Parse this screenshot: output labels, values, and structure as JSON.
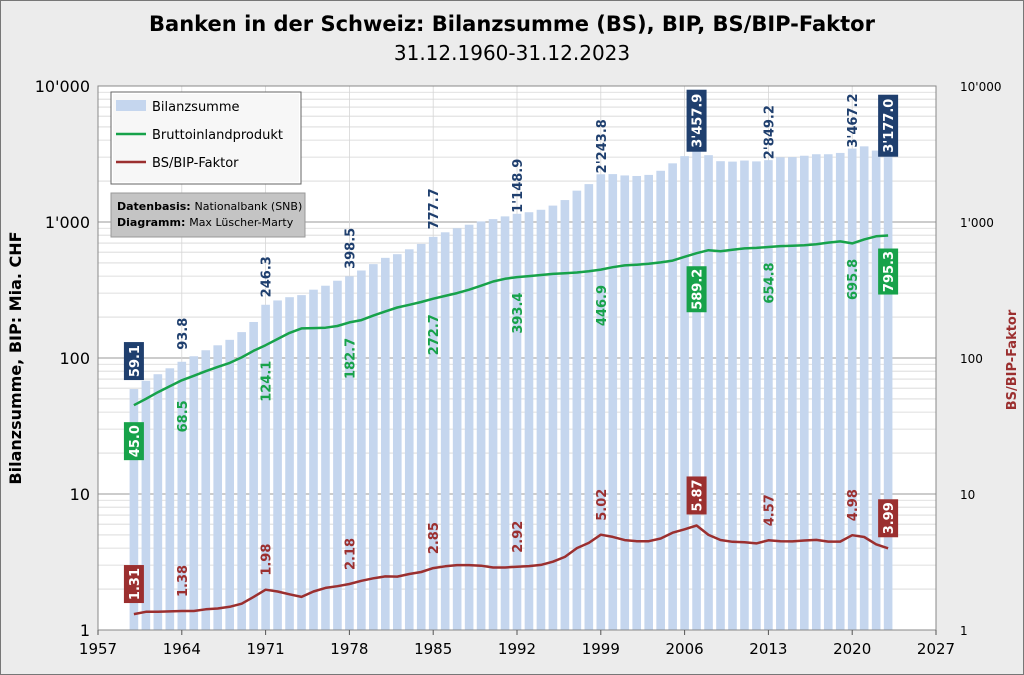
{
  "chart_data": {
    "type": "bar+line",
    "title": "Banken in der Schweiz: Bilanzsumme (BS), BIP, BS/BIP-Faktor",
    "subtitle": "31.12.1960-31.12.2023",
    "ylabel_left": "Bilanzsumme, BIP: Mia. CHF",
    "ylabel_right": "BS/BIP-Faktor",
    "yscale": "log",
    "ylim": [
      1,
      10000
    ],
    "y_ticks": [
      "1",
      "10",
      "100",
      "1'000",
      "10'000"
    ],
    "xlim": [
      1957,
      2027
    ],
    "x_ticks": [
      1957,
      1964,
      1971,
      1978,
      1985,
      1992,
      1999,
      2006,
      2013,
      2020,
      2027
    ],
    "grid": true,
    "legend_position": "top-left",
    "legend": [
      "Bilanzsumme",
      "Bruttoinlandprodukt",
      "BS/BIP-Faktor"
    ],
    "note_lines": [
      {
        "label": "Datenbasis:",
        "text": "Nationalbank (SNB)"
      },
      {
        "label": "Diagramm:",
        "text": "Max Lüscher-Marty"
      }
    ],
    "colors": {
      "bilanzsumme": "#c5d6ee",
      "bip": "#17a24a",
      "faktor": "#9b2f2f",
      "label_bs": "#1f3f6e"
    },
    "x": [
      1960,
      1961,
      1962,
      1963,
      1964,
      1965,
      1966,
      1967,
      1968,
      1969,
      1970,
      1971,
      1972,
      1973,
      1974,
      1975,
      1976,
      1977,
      1978,
      1979,
      1980,
      1981,
      1982,
      1983,
      1984,
      1985,
      1986,
      1987,
      1988,
      1989,
      1990,
      1991,
      1992,
      1993,
      1994,
      1995,
      1996,
      1997,
      1998,
      1999,
      2000,
      2001,
      2002,
      2003,
      2004,
      2005,
      2006,
      2007,
      2008,
      2009,
      2010,
      2011,
      2012,
      2013,
      2014,
      2015,
      2016,
      2017,
      2018,
      2019,
      2020,
      2021,
      2022,
      2023
    ],
    "series": [
      {
        "name": "Bilanzsumme",
        "type": "bar",
        "values": [
          59.1,
          68,
          76,
          84,
          93.8,
          103,
          114,
          124,
          136,
          155,
          184,
          246.3,
          265,
          280,
          290,
          318,
          340,
          370,
          398.5,
          440,
          490,
          545,
          580,
          630,
          690,
          777.7,
          840,
          900,
          955,
          1010,
          1050,
          1100,
          1148.9,
          1180,
          1230,
          1320,
          1450,
          1700,
          1900,
          2243.8,
          2250,
          2200,
          2180,
          2220,
          2380,
          2700,
          3050,
          3457.9,
          3100,
          2800,
          2780,
          2830,
          2790,
          2849.2,
          2990,
          3000,
          3070,
          3150,
          3150,
          3220,
          3467.2,
          3600,
          3350,
          3177.0
        ]
      },
      {
        "name": "Bruttoinlandprodukt",
        "type": "line",
        "values": [
          45.0,
          50,
          56,
          62,
          68.5,
          74,
          80,
          86,
          92,
          101,
          113,
          124.1,
          138,
          153,
          165,
          166,
          167,
          172,
          182.7,
          190,
          205,
          220,
          235,
          246,
          258,
          272.7,
          286,
          300,
          318,
          340,
          365,
          382,
          393.4,
          400,
          408,
          415,
          420,
          425,
          435,
          446.9,
          465,
          480,
          485,
          493,
          505,
          520,
          555,
          589.2,
          620,
          610,
          625,
          640,
          645,
          654.8,
          665,
          670,
          675,
          685,
          705,
          720,
          695.8,
          745,
          785,
          795.3
        ]
      },
      {
        "name": "BS/BIP-Faktor",
        "type": "line",
        "values": [
          1.31,
          1.36,
          1.36,
          1.37,
          1.38,
          1.38,
          1.42,
          1.44,
          1.48,
          1.56,
          1.75,
          1.98,
          1.92,
          1.83,
          1.75,
          1.92,
          2.04,
          2.1,
          2.18,
          2.3,
          2.4,
          2.48,
          2.47,
          2.58,
          2.67,
          2.85,
          2.94,
          3.0,
          3.0,
          2.97,
          2.88,
          2.88,
          2.92,
          2.95,
          3.01,
          3.18,
          3.45,
          4.0,
          4.37,
          5.02,
          4.84,
          4.58,
          4.5,
          4.5,
          4.71,
          5.19,
          5.5,
          5.87,
          5.0,
          4.59,
          4.45,
          4.42,
          4.33,
          4.57,
          4.5,
          4.48,
          4.55,
          4.6,
          4.47,
          4.47,
          4.98,
          4.83,
          4.27,
          3.99
        ]
      }
    ],
    "labels_bs": [
      {
        "x": 1960,
        "text": "59.1",
        "boxed": true
      },
      {
        "x": 1964,
        "text": "93.8",
        "boxed": false
      },
      {
        "x": 1971,
        "text": "246.3",
        "boxed": false
      },
      {
        "x": 1978,
        "text": "398.5",
        "boxed": false
      },
      {
        "x": 1985,
        "text": "777.7",
        "boxed": false
      },
      {
        "x": 1992,
        "text": "1'148.9",
        "boxed": false
      },
      {
        "x": 1999,
        "text": "2'243.8",
        "boxed": false
      },
      {
        "x": 2007,
        "text": "3'457.9",
        "boxed": true
      },
      {
        "x": 2013,
        "text": "2'849.2",
        "boxed": false
      },
      {
        "x": 2020,
        "text": "3'467.2",
        "boxed": false
      },
      {
        "x": 2023,
        "text": "3'177.0",
        "boxed": true
      }
    ],
    "labels_bip": [
      {
        "x": 1960,
        "text": "45.0",
        "boxed": true
      },
      {
        "x": 1964,
        "text": "68.5",
        "boxed": false
      },
      {
        "x": 1971,
        "text": "124.1",
        "boxed": false
      },
      {
        "x": 1978,
        "text": "182.7",
        "boxed": false
      },
      {
        "x": 1985,
        "text": "272.7",
        "boxed": false
      },
      {
        "x": 1992,
        "text": "393.4",
        "boxed": false
      },
      {
        "x": 1999,
        "text": "446.9",
        "boxed": false
      },
      {
        "x": 2007,
        "text": "589.2",
        "boxed": true
      },
      {
        "x": 2013,
        "text": "654.8",
        "boxed": false
      },
      {
        "x": 2020,
        "text": "695.8",
        "boxed": false
      },
      {
        "x": 2023,
        "text": "795.3",
        "boxed": true
      }
    ],
    "labels_faktor": [
      {
        "x": 1960,
        "text": "1.31",
        "boxed": true
      },
      {
        "x": 1964,
        "text": "1.38",
        "boxed": false
      },
      {
        "x": 1971,
        "text": "1.98",
        "boxed": false
      },
      {
        "x": 1978,
        "text": "2.18",
        "boxed": false
      },
      {
        "x": 1985,
        "text": "2.85",
        "boxed": false
      },
      {
        "x": 1992,
        "text": "2.92",
        "boxed": false
      },
      {
        "x": 1999,
        "text": "5.02",
        "boxed": false
      },
      {
        "x": 2007,
        "text": "5.87",
        "boxed": true
      },
      {
        "x": 2013,
        "text": "4.57",
        "boxed": false
      },
      {
        "x": 2020,
        "text": "4.98",
        "boxed": false
      },
      {
        "x": 2023,
        "text": "3.99",
        "boxed": true
      }
    ]
  }
}
